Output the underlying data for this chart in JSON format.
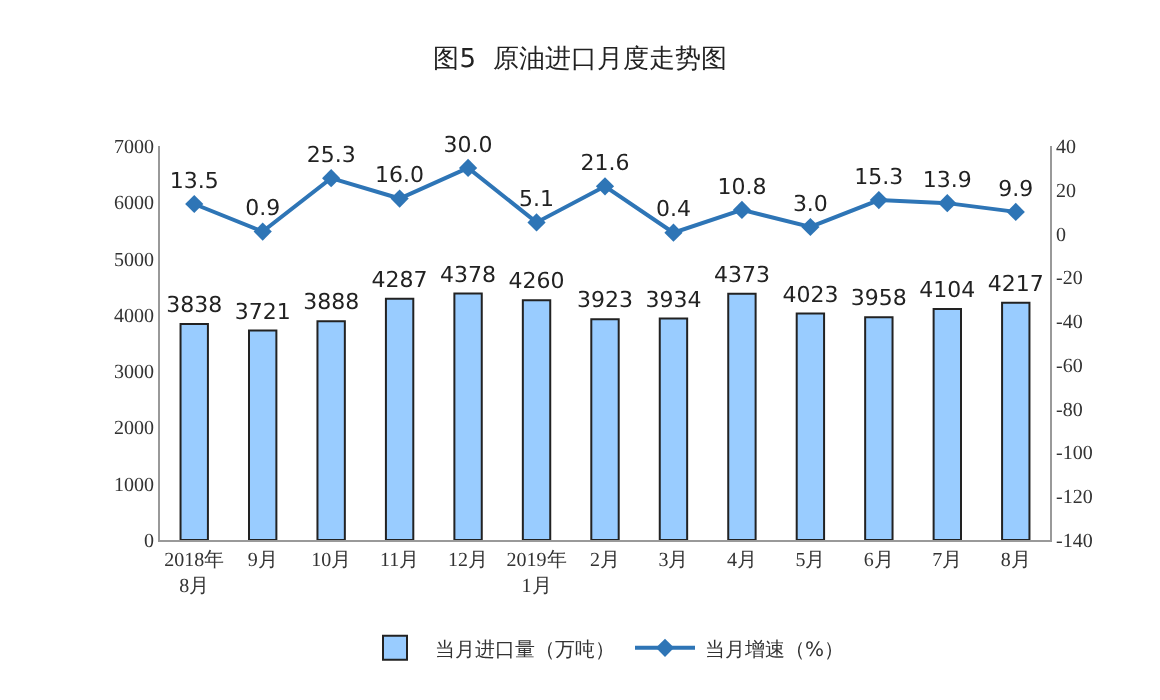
{
  "chart_data": {
    "type": "bar",
    "title": "图5  原油进口月度走势图",
    "categories": [
      "2018年\n8月",
      "9月",
      "10月",
      "11月",
      "12月",
      "2019年\n1月",
      "2月",
      "3月",
      "4月",
      "5月",
      "6月",
      "7月",
      "8月"
    ],
    "series": [
      {
        "name": "当月进口量（万吨）",
        "color": "#99ccff",
        "values": [
          3838,
          3721,
          3888,
          4287,
          4378,
          4260,
          3923,
          3934,
          4373,
          4023,
          3958,
          4104,
          4217
        ]
      },
      {
        "type": "line",
        "name": "当月增速（%）",
        "color": "#2e75b6",
        "axis": "y2",
        "marker": "diamond",
        "values": [
          13.5,
          0.9,
          25.3,
          16.0,
          30.0,
          5.1,
          21.6,
          0.4,
          10.8,
          3.0,
          15.3,
          13.9,
          9.9
        ],
        "value_labels": [
          "13.5",
          "0.9",
          "25.3",
          "16.0",
          "30.0",
          "5.1",
          "21.6",
          "0.4",
          "10.8",
          "3.0",
          "15.3",
          "13.9",
          "9.9"
        ]
      }
    ],
    "ylim": [
      0,
      7000
    ],
    "yticks": [
      0,
      1000,
      2000,
      3000,
      4000,
      5000,
      6000,
      7000
    ],
    "y2lim": [
      -140,
      40
    ],
    "y2ticks": [
      -140,
      -120,
      -100,
      -80,
      -60,
      -40,
      -20,
      0,
      20,
      40
    ],
    "data_labels": true,
    "legend": "bottom"
  }
}
